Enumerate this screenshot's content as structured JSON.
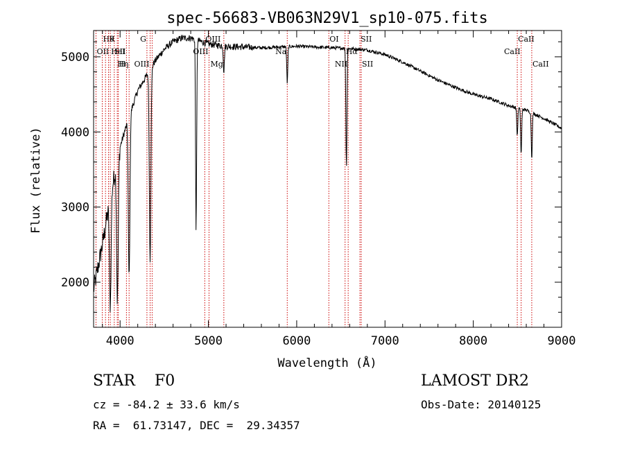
{
  "chart_data": {
    "type": "line",
    "title": "spec-56683-VB063N29V1_sp10-075.fits",
    "xlabel": "Wavelength (Å)",
    "ylabel": "Flux (relative)",
    "xlim": [
      3700,
      9000
    ],
    "ylim": [
      1400,
      5350
    ],
    "x_ticks": [
      4000,
      5000,
      6000,
      7000,
      8000,
      9000
    ],
    "y_ticks": [
      2000,
      3000,
      4000,
      5000
    ],
    "grid": false,
    "legend": "none",
    "colors": {
      "spectrum": "#000000",
      "line_markers": "#cc0000",
      "axes": "#000000"
    },
    "continuum": {
      "x": [
        3700,
        3800,
        3900,
        4000,
        4100,
        4200,
        4300,
        4400,
        4500,
        4600,
        4700,
        4800,
        5000,
        5200,
        5400,
        5600,
        5800,
        6000,
        6200,
        6400,
        6600,
        6800,
        7000,
        7200,
        7400,
        7600,
        7800,
        8000,
        8200,
        8400,
        8600,
        8800,
        9000
      ],
      "y": [
        1900,
        2500,
        3200,
        3800,
        4200,
        4550,
        4750,
        4950,
        5100,
        5200,
        5250,
        5250,
        5170,
        5140,
        5130,
        5120,
        5130,
        5140,
        5130,
        5120,
        5110,
        5090,
        5030,
        4930,
        4810,
        4690,
        4590,
        4500,
        4440,
        4350,
        4290,
        4180,
        4050
      ]
    },
    "absorption": [
      {
        "line": "Hα",
        "x": 6563,
        "y_min": 3550
      },
      {
        "line": "Hβ",
        "x": 4861,
        "y_min": 2700
      },
      {
        "line": "Hγ",
        "x": 4340,
        "y_min": 2300
      },
      {
        "line": "Hδ",
        "x": 4102,
        "y_min": 2080
      },
      {
        "line": "Hε / H",
        "x": 3970,
        "y_min": 1750
      },
      {
        "line": "H8",
        "x": 3889,
        "y_min": 1700
      },
      {
        "line": "Na",
        "x": 5893,
        "y_min": 4650
      },
      {
        "line": "Mg",
        "x": 5175,
        "y_min": 4800
      },
      {
        "line": "CaII",
        "x": 8498,
        "y_min": 3950
      },
      {
        "line": "CaII",
        "x": 8542,
        "y_min": 3700
      },
      {
        "line": "CaII",
        "x": 8662,
        "y_min": 3650
      }
    ],
    "line_markers": [
      {
        "x": 3798,
        "label": "Hθ",
        "row": 0,
        "side": "r"
      },
      {
        "x": 3835,
        "label": "",
        "row": 0,
        "side": "r"
      },
      {
        "x": 3869,
        "label": "K",
        "row": 0,
        "side": "r"
      },
      {
        "x": 3727,
        "label": "OII",
        "row": 1,
        "side": "r"
      },
      {
        "x": 3889,
        "label": "HeI",
        "row": 1,
        "side": "r"
      },
      {
        "x": 3934,
        "label": "",
        "row": 1,
        "side": "r"
      },
      {
        "x": 4072,
        "label": "SII",
        "row": 1,
        "side": "l"
      },
      {
        "x": 3968,
        "label": "",
        "row": 2,
        "side": "r"
      },
      {
        "x": 4102,
        "label": "Hη",
        "row": 2,
        "side": "l"
      },
      {
        "x": 3980,
        "label": "H",
        "row": 2,
        "side": "r"
      },
      {
        "x": 4304,
        "label": "G",
        "row": 0,
        "side": "l"
      },
      {
        "x": 4340,
        "label": "OIII",
        "row": 2,
        "side": "l"
      },
      {
        "x": 4363,
        "label": "",
        "row": 2,
        "side": "r"
      },
      {
        "x": 4959,
        "label": "OIII",
        "row": 0,
        "side": "r"
      },
      {
        "x": 5007,
        "label": "OIII",
        "row": 1,
        "side": "l"
      },
      {
        "x": 5175,
        "label": "Mg",
        "row": 2,
        "side": "l"
      },
      {
        "x": 5893,
        "label": "Na",
        "row": 1,
        "side": "l"
      },
      {
        "x": 6364,
        "label": "OI",
        "row": 0,
        "side": "r"
      },
      {
        "x": 6548,
        "label": "Hα",
        "row": 1,
        "side": "r"
      },
      {
        "x": 6583,
        "label": "NII",
        "row": 2,
        "side": "l"
      },
      {
        "x": 6716,
        "label": "SII",
        "row": 0,
        "side": "r"
      },
      {
        "x": 6731,
        "label": "SII",
        "row": 2,
        "side": "r"
      },
      {
        "x": 8498,
        "label": "CaII",
        "row": 0,
        "side": "r"
      },
      {
        "x": 8542,
        "label": "CaII",
        "row": 1,
        "side": "l"
      },
      {
        "x": 8662,
        "label": "CaII",
        "row": 2,
        "side": "r"
      }
    ]
  },
  "info": {
    "class_line": "STAR    F0",
    "survey": "LAMOST DR2",
    "cz": "cz = -84.2 ± 33.6 km/s",
    "obs_date": "Obs-Date: 20140125",
    "radec": "RA =  61.73147, DEC =  29.34357"
  }
}
